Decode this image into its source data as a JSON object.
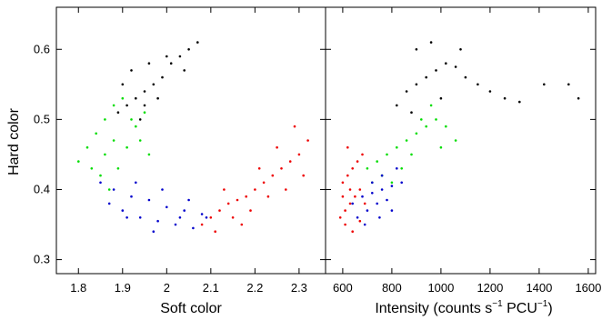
{
  "colors": {
    "black": "#000000",
    "green": "#00dd00",
    "blue": "#0000cc",
    "red": "#ee0000"
  },
  "chart_data": [
    {
      "type": "scatter",
      "title": "",
      "xlabel": "Soft color",
      "ylabel": "Hard color",
      "xlim": [
        1.75,
        2.36
      ],
      "ylim": [
        0.28,
        0.66
      ],
      "xticks": [
        1.8,
        1.9,
        2.0,
        2.1,
        2.2,
        2.3
      ],
      "xtick_labels": [
        "1.8",
        "1.9",
        "2",
        "2.1",
        "2.2",
        "2.3"
      ],
      "yticks": [
        0.3,
        0.4,
        0.5,
        0.6
      ],
      "ytick_labels": [
        "0.3",
        "0.4",
        "0.5",
        "0.6"
      ],
      "grid": false,
      "legend": "none",
      "series": [
        {
          "color": "black",
          "points": [
            [
              1.89,
              0.51
            ],
            [
              1.91,
              0.52
            ],
            [
              1.93,
              0.53
            ],
            [
              1.95,
              0.54
            ],
            [
              1.97,
              0.55
            ],
            [
              1.99,
              0.56
            ],
            [
              2.01,
              0.58
            ],
            [
              2.03,
              0.59
            ],
            [
              2.05,
              0.6
            ],
            [
              2.07,
              0.61
            ],
            [
              1.92,
              0.57
            ],
            [
              1.96,
              0.58
            ],
            [
              2.0,
              0.59
            ],
            [
              1.94,
              0.5
            ],
            [
              1.98,
              0.53
            ],
            [
              2.04,
              0.57
            ],
            [
              1.9,
              0.55
            ],
            [
              1.95,
              0.52
            ]
          ]
        },
        {
          "color": "green",
          "points": [
            [
              1.8,
              0.44
            ],
            [
              1.82,
              0.46
            ],
            [
              1.84,
              0.48
            ],
            [
              1.86,
              0.5
            ],
            [
              1.88,
              0.52
            ],
            [
              1.9,
              0.53
            ],
            [
              1.92,
              0.5
            ],
            [
              1.94,
              0.47
            ],
            [
              1.96,
              0.45
            ],
            [
              1.85,
              0.42
            ],
            [
              1.87,
              0.4
            ],
            [
              1.89,
              0.43
            ],
            [
              1.91,
              0.46
            ],
            [
              1.93,
              0.49
            ],
            [
              1.83,
              0.43
            ],
            [
              1.88,
              0.47
            ],
            [
              1.95,
              0.51
            ],
            [
              1.86,
              0.45
            ]
          ]
        },
        {
          "color": "blue",
          "points": [
            [
              1.85,
              0.41
            ],
            [
              1.88,
              0.4
            ],
            [
              1.92,
              0.39
            ],
            [
              1.96,
              0.385
            ],
            [
              2.0,
              0.375
            ],
            [
              2.04,
              0.37
            ],
            [
              2.08,
              0.365
            ],
            [
              1.9,
              0.37
            ],
            [
              1.94,
              0.36
            ],
            [
              1.98,
              0.355
            ],
            [
              2.02,
              0.35
            ],
            [
              2.06,
              0.345
            ],
            [
              1.87,
              0.38
            ],
            [
              1.93,
              0.41
            ],
            [
              1.99,
              0.4
            ],
            [
              2.05,
              0.385
            ],
            [
              2.09,
              0.36
            ],
            [
              1.91,
              0.36
            ],
            [
              1.97,
              0.34
            ],
            [
              2.03,
              0.36
            ]
          ]
        },
        {
          "color": "red",
          "points": [
            [
              2.08,
              0.35
            ],
            [
              2.1,
              0.36
            ],
            [
              2.12,
              0.37
            ],
            [
              2.14,
              0.38
            ],
            [
              2.16,
              0.385
            ],
            [
              2.18,
              0.39
            ],
            [
              2.2,
              0.4
            ],
            [
              2.22,
              0.41
            ],
            [
              2.24,
              0.42
            ],
            [
              2.26,
              0.43
            ],
            [
              2.28,
              0.44
            ],
            [
              2.3,
              0.45
            ],
            [
              2.32,
              0.47
            ],
            [
              2.11,
              0.34
            ],
            [
              2.15,
              0.36
            ],
            [
              2.19,
              0.37
            ],
            [
              2.23,
              0.39
            ],
            [
              2.27,
              0.4
            ],
            [
              2.31,
              0.42
            ],
            [
              2.25,
              0.46
            ],
            [
              2.29,
              0.49
            ],
            [
              2.13,
              0.4
            ],
            [
              2.21,
              0.43
            ],
            [
              2.17,
              0.35
            ]
          ]
        }
      ]
    },
    {
      "type": "scatter",
      "title": "",
      "xlabel": "Intensity (counts s^-1 PCU^-1)",
      "xlabel_parts": {
        "pre": "Intensity (counts s",
        "sup1": "−1",
        "mid": " PCU",
        "sup2": "−1",
        "post": ")"
      },
      "ylabel": "",
      "xlim": [
        530,
        1630
      ],
      "ylim": [
        0.28,
        0.66
      ],
      "xticks": [
        600,
        800,
        1000,
        1200,
        1400,
        1600
      ],
      "xtick_labels": [
        "600",
        "800",
        "1000",
        "1200",
        "1400",
        "1600"
      ],
      "yticks": [
        0.3,
        0.4,
        0.5,
        0.6
      ],
      "ytick_labels": [],
      "grid": false,
      "legend": "none",
      "series": [
        {
          "color": "black",
          "points": [
            [
              820,
              0.52
            ],
            [
              860,
              0.54
            ],
            [
              900,
              0.55
            ],
            [
              940,
              0.56
            ],
            [
              980,
              0.57
            ],
            [
              1020,
              0.58
            ],
            [
              1060,
              0.575
            ],
            [
              1100,
              0.56
            ],
            [
              1150,
              0.55
            ],
            [
              1200,
              0.54
            ],
            [
              1260,
              0.53
            ],
            [
              1320,
              0.525
            ],
            [
              1420,
              0.55
            ],
            [
              1520,
              0.55
            ],
            [
              1560,
              0.53
            ],
            [
              900,
              0.6
            ],
            [
              960,
              0.61
            ],
            [
              880,
              0.51
            ],
            [
              1000,
              0.53
            ],
            [
              1080,
              0.6
            ]
          ]
        },
        {
          "color": "green",
          "points": [
            [
              700,
              0.43
            ],
            [
              740,
              0.44
            ],
            [
              780,
              0.45
            ],
            [
              820,
              0.46
            ],
            [
              860,
              0.47
            ],
            [
              900,
              0.48
            ],
            [
              940,
              0.49
            ],
            [
              980,
              0.5
            ],
            [
              1020,
              0.49
            ],
            [
              1060,
              0.47
            ],
            [
              760,
              0.42
            ],
            [
              800,
              0.41
            ],
            [
              840,
              0.43
            ],
            [
              880,
              0.45
            ],
            [
              920,
              0.5
            ],
            [
              960,
              0.52
            ],
            [
              1000,
              0.46
            ],
            [
              720,
              0.41
            ]
          ]
        },
        {
          "color": "blue",
          "points": [
            [
              640,
              0.38
            ],
            [
              680,
              0.39
            ],
            [
              720,
              0.395
            ],
            [
              760,
              0.4
            ],
            [
              800,
              0.405
            ],
            [
              700,
              0.37
            ],
            [
              740,
              0.38
            ],
            [
              780,
              0.385
            ],
            [
              660,
              0.36
            ],
            [
              720,
              0.41
            ],
            [
              760,
              0.42
            ],
            [
              820,
              0.43
            ],
            [
              690,
              0.35
            ],
            [
              750,
              0.36
            ],
            [
              800,
              0.37
            ],
            [
              840,
              0.41
            ]
          ]
        },
        {
          "color": "red",
          "points": [
            [
              590,
              0.36
            ],
            [
              610,
              0.37
            ],
            [
              630,
              0.38
            ],
            [
              650,
              0.39
            ],
            [
              670,
              0.4
            ],
            [
              600,
              0.41
            ],
            [
              620,
              0.42
            ],
            [
              640,
              0.43
            ],
            [
              660,
              0.44
            ],
            [
              680,
              0.45
            ],
            [
              610,
              0.35
            ],
            [
              640,
              0.34
            ],
            [
              670,
              0.355
            ],
            [
              600,
              0.39
            ],
            [
              630,
              0.4
            ],
            [
              690,
              0.38
            ],
            [
              620,
              0.46
            ]
          ]
        }
      ]
    }
  ]
}
